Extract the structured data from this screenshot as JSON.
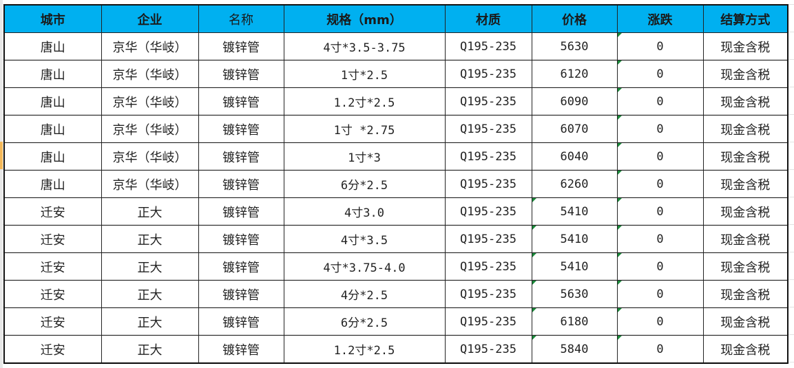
{
  "headers": [
    "城市",
    "企业",
    "名称",
    "规格（mm）",
    "材质",
    "价格",
    "涨跌",
    "结算方式"
  ],
  "rows": [
    [
      "唐山",
      "京华（华岐）",
      "镀锌管",
      "4寸*3.5-3.75",
      "Q195-235",
      "5630",
      "0",
      "现金含税"
    ],
    [
      "唐山",
      "京华（华岐）",
      "镀锌管",
      "1寸*2.5",
      "Q195-235",
      "6120",
      "0",
      "现金含税"
    ],
    [
      "唐山",
      "京华（华岐）",
      "镀锌管",
      "1.2寸*2.5",
      "Q195-235",
      "6090",
      "0",
      "现金含税"
    ],
    [
      "唐山",
      "京华（华岐）",
      "镀锌管",
      "1寸 *2.75",
      "Q195-235",
      "6070",
      "0",
      "现金含税"
    ],
    [
      "唐山",
      "京华（华岐）",
      "镀锌管",
      "1寸*3",
      "Q195-235",
      "6040",
      "0",
      "现金含税"
    ],
    [
      "唐山",
      "京华（华岐）",
      "镀锌管",
      "6分*2.5",
      "Q195-235",
      "6260",
      "0",
      "现金含税"
    ],
    [
      "迁安",
      "正大",
      "镀锌管",
      "4寸3.0",
      "Q195-235",
      "5410",
      "0",
      "现金含税"
    ],
    [
      "迁安",
      "正大",
      "镀锌管",
      "4寸*3.5",
      "Q195-235",
      "5410",
      "0",
      "现金含税"
    ],
    [
      "迁安",
      "正大",
      "镀锌管",
      "4寸*3.75-4.0",
      "Q195-235",
      "5410",
      "0",
      "现金含税"
    ],
    [
      "迁安",
      "正大",
      "镀锌管",
      "4分*2.5",
      "Q195-235",
      "5630",
      "0",
      "现金含税"
    ],
    [
      "迁安",
      "正大",
      "镀锌管",
      "6分*2.5",
      "Q195-235",
      "6180",
      "0",
      "现金含税"
    ],
    [
      "迁安",
      "正大",
      "镀锌管",
      "1.2寸*2.5",
      "Q195-235",
      "5840",
      "0",
      "现金含税"
    ]
  ],
  "colors": {
    "header_bg": "#00b0f0",
    "number_as_text_marker": "#1a8a3a"
  }
}
